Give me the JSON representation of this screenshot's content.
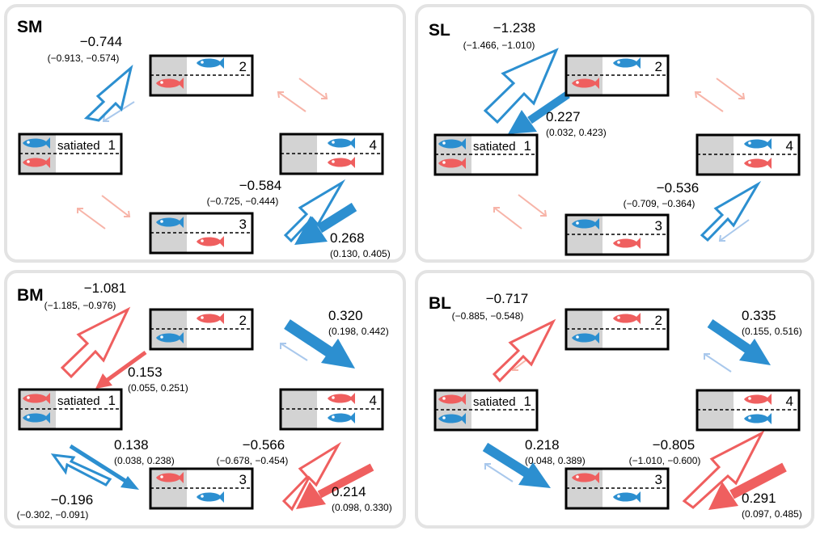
{
  "colors": {
    "blue": "#2c8fd0",
    "red": "#ef5f5f",
    "gray": "#d3d3d3",
    "panel_border": "#e3e3e3",
    "faint_red": "#f7b4a8",
    "faint_blue": "#a9c8ec"
  },
  "icons": [
    "fish-icon"
  ],
  "state_label_satiated": "satiated",
  "state_numbers": [
    "1",
    "2",
    "3",
    "4"
  ],
  "panels": [
    {
      "id": "sm",
      "title": "SM",
      "top_fish": "blue",
      "bottom_fish": "red",
      "coefficients": [
        {
          "value": "−0.744",
          "ci": "(−0.913, −0.574)"
        },
        {
          "value": "−0.584",
          "ci": "(−0.725, −0.444)"
        },
        {
          "value": "0.268",
          "ci": "(0.130, 0.405)"
        }
      ]
    },
    {
      "id": "sl",
      "title": "SL",
      "top_fish": "blue",
      "bottom_fish": "red",
      "coefficients": [
        {
          "value": "−1.238",
          "ci": "(−1.466, −1.010)"
        },
        {
          "value": "0.227",
          "ci": "(0.032, 0.423)"
        },
        {
          "value": "−0.536",
          "ci": "(−0.709, −0.364)"
        }
      ]
    },
    {
      "id": "bm",
      "title": "BM",
      "top_fish": "red",
      "bottom_fish": "blue",
      "coefficients": [
        {
          "value": "−1.081",
          "ci": "(−1.185, −0.976)"
        },
        {
          "value": "0.153",
          "ci": "(0.055, 0.251)"
        },
        {
          "value": "0.320",
          "ci": "(0.198, 0.442)"
        },
        {
          "value": "0.138",
          "ci": "(0.038, 0.238)"
        },
        {
          "value": "−0.196",
          "ci": "(−0.302, −0.091)"
        },
        {
          "value": "−0.566",
          "ci": "(−0.678, −0.454)"
        },
        {
          "value": "0.214",
          "ci": "(0.098, 0.330)"
        }
      ]
    },
    {
      "id": "bl",
      "title": "BL",
      "top_fish": "red",
      "bottom_fish": "blue",
      "coefficients": [
        {
          "value": "−0.717",
          "ci": "(−0.885, −0.548)"
        },
        {
          "value": "0.335",
          "ci": "(0.155, 0.516)"
        },
        {
          "value": "0.218",
          "ci": "(0.048, 0.389)"
        },
        {
          "value": "−0.805",
          "ci": "(−1.010, −0.600)"
        },
        {
          "value": "0.291",
          "ci": "(0.097, 0.485)"
        }
      ]
    }
  ]
}
